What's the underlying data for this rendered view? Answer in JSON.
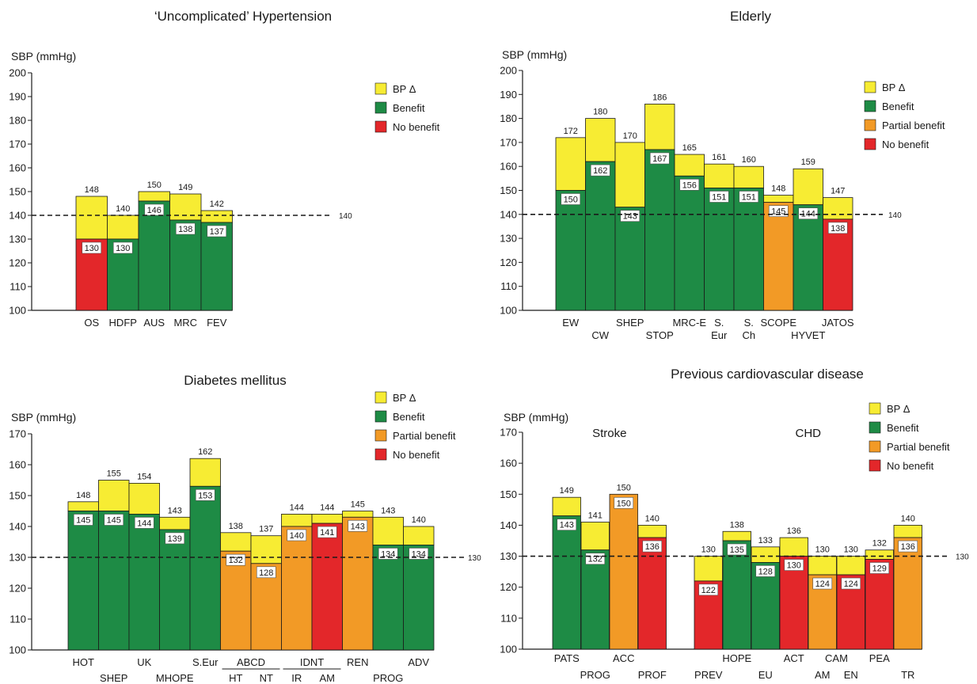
{
  "colors": {
    "bp_delta": "#F7EC33",
    "benefit": "#1E8B45",
    "partial_benefit": "#F29A26",
    "no_benefit": "#E3272A",
    "ref_line": "#1a1a1a"
  },
  "chart_data": [
    {
      "id": "p1",
      "type": "bar",
      "title": "‘Uncomplicated’ Hypertension",
      "ylabel": "SBP (mmHg)",
      "ylim": [
        100,
        200
      ],
      "yticks": [
        100,
        110,
        120,
        130,
        140,
        150,
        160,
        170,
        180,
        190,
        200
      ],
      "ref_line": 140,
      "ref_label": "140",
      "legend_position": "right",
      "legend": [
        {
          "key": "bp_delta",
          "label": "BP Δ"
        },
        {
          "key": "benefit",
          "label": "Benefit"
        },
        {
          "key": "no_benefit",
          "label": "No benefit"
        }
      ],
      "bars": [
        {
          "label": "OS",
          "row": 0,
          "top": 148,
          "achieved": 130,
          "outcome": "no_benefit"
        },
        {
          "label": "HDFP",
          "row": 0,
          "top": 140,
          "achieved": 130,
          "outcome": "benefit"
        },
        {
          "label": "AUS",
          "row": 0,
          "top": 150,
          "achieved": 146,
          "outcome": "benefit"
        },
        {
          "label": "MRC",
          "row": 0,
          "top": 149,
          "achieved": 138,
          "outcome": "benefit"
        },
        {
          "label": "FEV",
          "row": 0,
          "top": 142,
          "achieved": 137,
          "outcome": "benefit"
        }
      ],
      "groups": []
    },
    {
      "id": "p2",
      "type": "bar",
      "title": "Elderly",
      "ylabel": "SBP (mmHg)",
      "ylim": [
        100,
        200
      ],
      "yticks": [
        100,
        110,
        120,
        130,
        140,
        150,
        160,
        170,
        180,
        190,
        200
      ],
      "ref_line": 140,
      "ref_label": "140",
      "legend_position": "right",
      "legend": [
        {
          "key": "bp_delta",
          "label": "BP Δ"
        },
        {
          "key": "benefit",
          "label": "Benefit"
        },
        {
          "key": "partial_benefit",
          "label": "Partial benefit"
        },
        {
          "key": "no_benefit",
          "label": "No benefit"
        }
      ],
      "bars": [
        {
          "label": "EW",
          "row": 0,
          "top": 172,
          "achieved": 150,
          "outcome": "benefit"
        },
        {
          "label": "CW",
          "row": 1,
          "top": 180,
          "achieved": 162,
          "outcome": "benefit"
        },
        {
          "label": "SHEP",
          "row": 0,
          "top": 170,
          "achieved": 143,
          "outcome": "benefit"
        },
        {
          "label": "STOP",
          "row": 1,
          "top": 186,
          "achieved": 167,
          "outcome": "benefit"
        },
        {
          "label": "MRC-E",
          "row": 0,
          "top": 165,
          "achieved": 156,
          "outcome": "benefit"
        },
        {
          "label": "S.",
          "label2": "Eur",
          "row": 0,
          "top": 161,
          "achieved": 151,
          "outcome": "benefit"
        },
        {
          "label": "S.",
          "label2": "Ch",
          "row": 0,
          "top": 160,
          "achieved": 151,
          "outcome": "benefit"
        },
        {
          "label": "SCOPE",
          "row": 0,
          "top": 148,
          "achieved": 145,
          "outcome": "partial_benefit"
        },
        {
          "label": "HYVET",
          "row": 1,
          "top": 159,
          "achieved": 144,
          "outcome": "benefit"
        },
        {
          "label": "JATOS",
          "row": 0,
          "top": 147,
          "achieved": 138,
          "outcome": "no_benefit"
        }
      ],
      "groups": []
    },
    {
      "id": "p3",
      "type": "bar",
      "title": "Diabetes mellitus",
      "ylabel": "SBP (mmHg)",
      "ylim": [
        100,
        170
      ],
      "yticks": [
        100,
        110,
        120,
        130,
        140,
        150,
        160,
        170
      ],
      "ref_line": 130,
      "ref_label": "130",
      "legend_position": "top-right",
      "legend": [
        {
          "key": "bp_delta",
          "label": "BP Δ"
        },
        {
          "key": "benefit",
          "label": "Benefit"
        },
        {
          "key": "partial_benefit",
          "label": "Partial benefit"
        },
        {
          "key": "no_benefit",
          "label": "No benefit"
        }
      ],
      "bars": [
        {
          "label": "HOT",
          "row": 0,
          "top": 148,
          "achieved": 145,
          "outcome": "benefit"
        },
        {
          "label": "SHEP",
          "row": 1,
          "top": 155,
          "achieved": 145,
          "outcome": "benefit"
        },
        {
          "label": "UK",
          "row": 0,
          "top": 154,
          "achieved": 144,
          "outcome": "benefit"
        },
        {
          "label": "MHOPE",
          "row": 1,
          "top": 143,
          "achieved": 139,
          "outcome": "benefit"
        },
        {
          "label": "S.Eur",
          "row": 0,
          "top": 162,
          "achieved": 153,
          "outcome": "benefit"
        },
        {
          "label": "HT",
          "row": 1,
          "top": 138,
          "achieved": 132,
          "outcome": "partial_benefit"
        },
        {
          "label": "NT",
          "row": 1,
          "top": 137,
          "achieved": 128,
          "outcome": "partial_benefit"
        },
        {
          "label": "IR",
          "row": 1,
          "top": 144,
          "achieved": 140,
          "outcome": "partial_benefit"
        },
        {
          "label": "AM",
          "row": 1,
          "top": 144,
          "achieved": 141,
          "outcome": "no_benefit"
        },
        {
          "label": "REN",
          "row": 0,
          "top": 145,
          "achieved": 143,
          "outcome": "partial_benefit"
        },
        {
          "label": "PROG",
          "row": 1,
          "top": 143,
          "achieved": 134,
          "outcome": "benefit"
        },
        {
          "label": "ADV",
          "row": 0,
          "top": 140,
          "achieved": 134,
          "outcome": "benefit"
        }
      ],
      "groups": [
        {
          "label": "ABCD",
          "first": 5,
          "last": 6
        },
        {
          "label": "IDNT",
          "first": 7,
          "last": 8
        }
      ]
    },
    {
      "id": "p4",
      "type": "bar",
      "title": "Previous cardiovascular disease",
      "ylabel": "SBP (mmHg)",
      "ylim": [
        100,
        170
      ],
      "yticks": [
        100,
        110,
        120,
        130,
        140,
        150,
        160,
        170
      ],
      "ref_line": 130,
      "ref_label": "130",
      "legend_position": "top-right",
      "legend": [
        {
          "key": "bp_delta",
          "label": "BP Δ"
        },
        {
          "key": "benefit",
          "label": "Benefit"
        },
        {
          "key": "partial_benefit",
          "label": "Partial benefit"
        },
        {
          "key": "no_benefit",
          "label": "No benefit"
        }
      ],
      "subgroups": [
        "Stroke",
        "CHD"
      ],
      "bars": [
        {
          "label": "PATS",
          "row": 0,
          "top": 149,
          "achieved": 143,
          "outcome": "benefit"
        },
        {
          "label": "PROG",
          "row": 1,
          "top": 141,
          "achieved": 132,
          "outcome": "benefit"
        },
        {
          "label": "ACC",
          "row": 0,
          "top": 150,
          "achieved": 150,
          "outcome": "partial_benefit"
        },
        {
          "label": "PROF",
          "row": 1,
          "top": 140,
          "achieved": 136,
          "outcome": "no_benefit"
        },
        {
          "label": "PREV",
          "row": 1,
          "top": 130,
          "achieved": 122,
          "outcome": "no_benefit"
        },
        {
          "label": "HOPE",
          "row": 0,
          "top": 138,
          "achieved": 135,
          "outcome": "benefit"
        },
        {
          "label": "EU",
          "row": 1,
          "top": 133,
          "achieved": 128,
          "outcome": "benefit"
        },
        {
          "label": "ACT",
          "row": 0,
          "top": 136,
          "achieved": 130,
          "outcome": "no_benefit"
        },
        {
          "label": "AM",
          "row": 1,
          "top": 130,
          "achieved": 124,
          "outcome": "partial_benefit"
        },
        {
          "label": "EN",
          "row": 1,
          "top": 130,
          "achieved": 124,
          "outcome": "no_benefit"
        },
        {
          "label": "PEA",
          "row": 0,
          "top": 132,
          "achieved": 129,
          "outcome": "no_benefit"
        },
        {
          "label": "TR",
          "row": 1,
          "top": 140,
          "achieved": 136,
          "outcome": "partial_benefit"
        }
      ],
      "extra_labels": [
        {
          "label": "CAM",
          "after_bar": 8
        }
      ],
      "groups": []
    }
  ]
}
